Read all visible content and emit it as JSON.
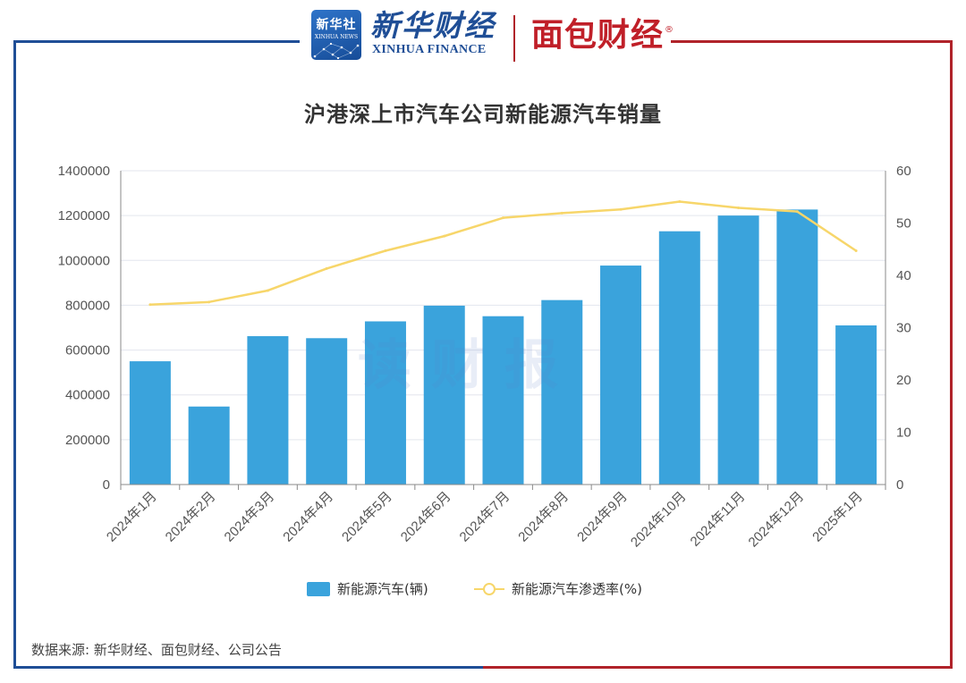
{
  "logos": {
    "xinhua_cn": "新华社",
    "xinhua_en": "XINHUA NEWS",
    "xinhua_finance_cn": "新华财经",
    "xinhua_finance_en": "XINHUA FINANCE",
    "mianbao_cn": "面包财经",
    "mianbao_reg": "®"
  },
  "watermark": "读财报",
  "colors": {
    "bar": "#3aa3dc",
    "line": "#f7d66a",
    "frame_left": "#1f4e96",
    "frame_right": "#b0232a"
  },
  "chart_data": {
    "type": "bar",
    "title": "沪港深上市汽车公司新能源汽车销量",
    "categories": [
      "2024年1月",
      "2024年2月",
      "2024年3月",
      "2024年4月",
      "2024年5月",
      "2024年6月",
      "2024年7月",
      "2024年8月",
      "2024年9月",
      "2024年10月",
      "2024年11月",
      "2024年12月",
      "2025年1月"
    ],
    "series": [
      {
        "name": "新能源汽车(辆)",
        "type": "bar",
        "axis": "left",
        "values": [
          550000,
          348000,
          662000,
          653000,
          728000,
          798000,
          751000,
          823000,
          977000,
          1130000,
          1200000,
          1227000,
          710000
        ]
      },
      {
        "name": "新能源汽车渗透率(%)",
        "type": "line",
        "axis": "right",
        "values": [
          34.4,
          34.9,
          37.1,
          41.3,
          44.7,
          47.5,
          51.0,
          51.9,
          52.6,
          54.1,
          52.9,
          52.2,
          44.7
        ]
      }
    ],
    "y_left": {
      "min": 0,
      "max": 1400000,
      "ticks": [
        0,
        200000,
        400000,
        600000,
        800000,
        1000000,
        1200000,
        1400000
      ]
    },
    "y_right": {
      "min": 0,
      "max": 60,
      "ticks": [
        0,
        10,
        20,
        30,
        40,
        50,
        60
      ]
    },
    "grid": true,
    "legend_position": "bottom-center"
  },
  "source": "数据来源: 新华财经、面包财经、公司公告"
}
